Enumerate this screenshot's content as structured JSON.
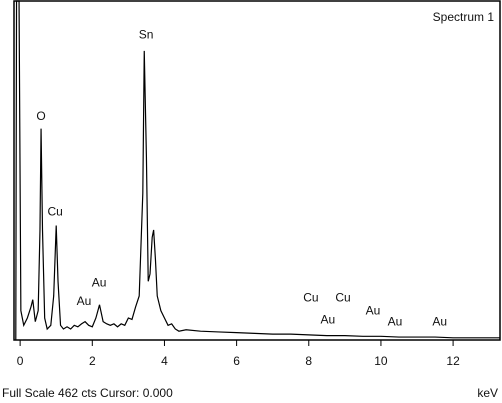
{
  "chart_data": {
    "type": "line",
    "title": "Spectrum 1",
    "x_label": "keV",
    "footer": "Full Scale 462 cts Cursor: 0.000",
    "color": "#000000",
    "xlim": [
      -0.17,
      13.3
    ],
    "ylim": [
      0,
      462
    ],
    "xticks": [
      0,
      2,
      4,
      6,
      8,
      10,
      12
    ],
    "x": [
      -0.12,
      -0.1,
      -0.03,
      0.02,
      0.1,
      0.2,
      0.3,
      0.35,
      0.42,
      0.5,
      0.55,
      0.58,
      0.62,
      0.68,
      0.75,
      0.85,
      0.93,
      1.0,
      1.05,
      1.12,
      1.2,
      1.3,
      1.4,
      1.5,
      1.6,
      1.7,
      1.8,
      1.9,
      2.0,
      2.1,
      2.2,
      2.3,
      2.4,
      2.5,
      2.6,
      2.7,
      2.8,
      2.9,
      3.0,
      3.1,
      3.2,
      3.3,
      3.4,
      3.44,
      3.5,
      3.55,
      3.6,
      3.66,
      3.7,
      3.75,
      3.8,
      3.9,
      4.0,
      4.1,
      4.2,
      4.3,
      4.4,
      4.6,
      5.0,
      5.5,
      6.0,
      6.5,
      7.0,
      7.5,
      8.0,
      8.5,
      9.0,
      9.5,
      10.0,
      10.5,
      11.0,
      11.5,
      12.0,
      12.5,
      13.3
    ],
    "values": [
      0,
      462,
      462,
      40,
      20,
      30,
      45,
      55,
      25,
      40,
      150,
      288,
      150,
      30,
      15,
      20,
      60,
      156,
      80,
      20,
      15,
      18,
      15,
      20,
      18,
      22,
      25,
      20,
      18,
      30,
      48,
      25,
      22,
      20,
      22,
      18,
      22,
      20,
      30,
      28,
      45,
      60,
      200,
      394,
      250,
      80,
      90,
      140,
      150,
      110,
      60,
      40,
      30,
      20,
      22,
      15,
      12,
      14,
      12,
      11,
      10,
      9,
      8,
      8,
      7,
      6,
      6,
      5,
      5,
      4,
      4,
      4,
      3,
      3,
      3
    ],
    "annotations": [
      {
        "text": "O",
        "x": 0.58,
        "y": 304
      },
      {
        "text": "Cu",
        "x": 0.97,
        "y": 174
      },
      {
        "text": "Au",
        "x": 1.77,
        "y": 52
      },
      {
        "text": "Au",
        "x": 2.19,
        "y": 77
      },
      {
        "text": "Sn",
        "x": 3.49,
        "y": 415
      },
      {
        "text": "Cu",
        "x": 8.06,
        "y": 57
      },
      {
        "text": "Au",
        "x": 8.53,
        "y": 27
      },
      {
        "text": "Cu",
        "x": 8.95,
        "y": 57
      },
      {
        "text": "Au",
        "x": 9.78,
        "y": 39
      },
      {
        "text": "Au",
        "x": 10.39,
        "y": 24
      },
      {
        "text": "Au",
        "x": 11.63,
        "y": 24
      }
    ]
  }
}
